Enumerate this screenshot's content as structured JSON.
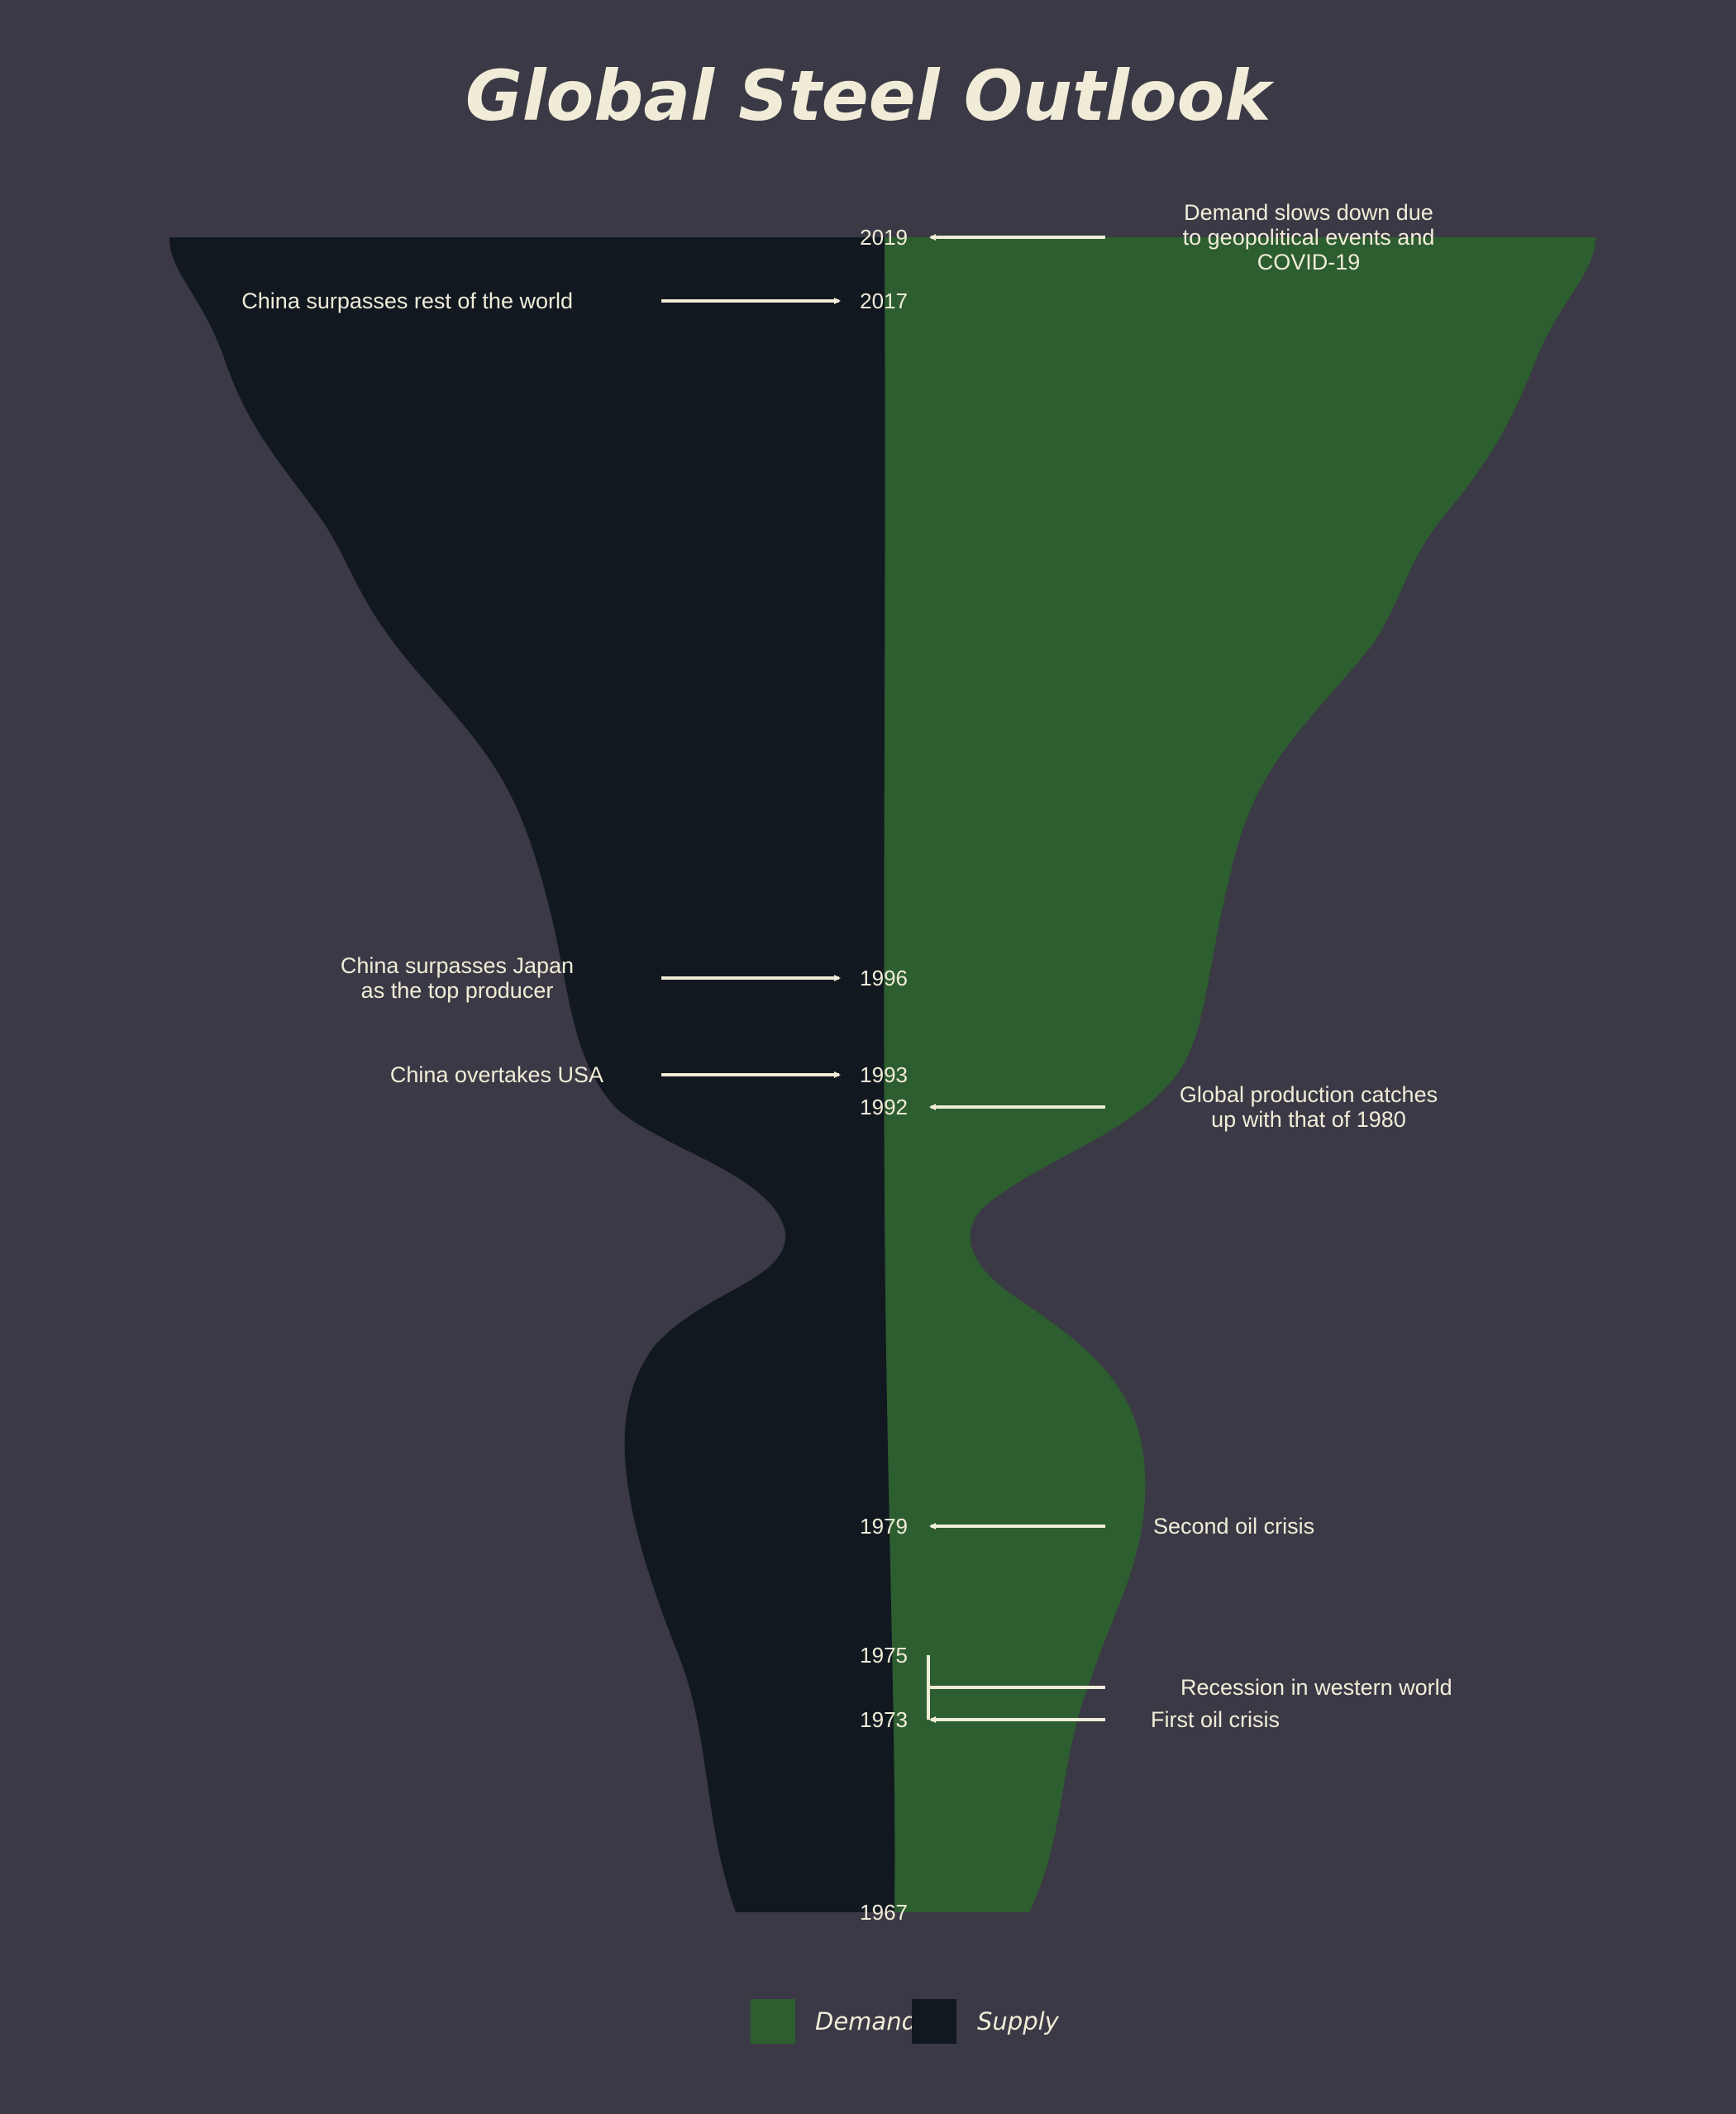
{
  "chart_data": {
    "type": "area",
    "title": "Global Steel Outlook",
    "orientation": "vertical-mirrored",
    "axis": {
      "label": "",
      "range": [
        1967,
        2019
      ]
    },
    "colors": {
      "demand": "#2d5e2f",
      "supply": "#111820",
      "background": "#3b3945",
      "text": "#f0ecd8"
    },
    "years": [
      1967,
      1973,
      1975,
      1979,
      1992,
      1993,
      1996,
      2017,
      2019
    ],
    "legend": {
      "placement": "bottom-center",
      "items": [
        {
          "key": "demand",
          "label": "Demand"
        },
        {
          "key": "supply",
          "label": "Supply"
        }
      ]
    },
    "annotations": [
      {
        "side": "left",
        "year": 2017,
        "lines": [
          "China surpasses rest of the world"
        ]
      },
      {
        "side": "left",
        "year": 1996,
        "lines": [
          "China surpasses Japan",
          "as the top producer"
        ]
      },
      {
        "side": "left",
        "year": 1993,
        "lines": [
          "China overtakes USA"
        ]
      },
      {
        "side": "right",
        "year": 2019,
        "lines": [
          "Demand slows down due",
          "to geopolitical events and",
          "COVID-19"
        ]
      },
      {
        "side": "right",
        "year": 1992,
        "lines": [
          "Global production catches",
          "up with that of 1980"
        ]
      },
      {
        "side": "right",
        "year": 1979,
        "lines": [
          "Second oil crisis"
        ]
      },
      {
        "side": "right",
        "year": 1975,
        "lines": [
          "Recession in western world"
        ]
      },
      {
        "side": "right",
        "year": 1973,
        "lines": [
          "First oil crisis"
        ]
      }
    ]
  }
}
